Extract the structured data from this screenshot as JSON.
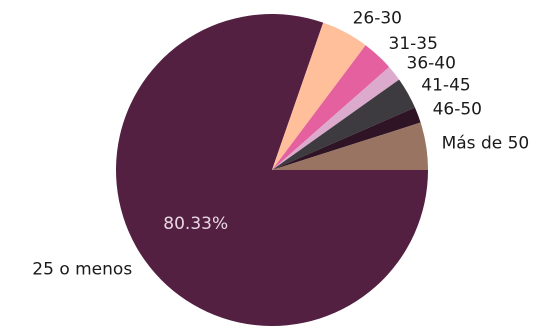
{
  "chart_data": {
    "type": "pie",
    "title": "",
    "categories": [
      "25 o menos",
      "26-30",
      "31-35",
      "36-40",
      "41-45",
      "46-50",
      "Más de 50"
    ],
    "values": [
      80.33,
      4.92,
      3.28,
      1.64,
      3.28,
      1.64,
      4.92
    ],
    "colors": [
      "#532042",
      "#ffbf9b",
      "#e4609e",
      "#dcaacc",
      "#3d3a40",
      "#2e1424",
      "#9a7462"
    ],
    "data_labels": [
      "80.33%",
      "",
      "",
      "",
      "",
      "",
      ""
    ],
    "pct_label_color": "#e8d8e4",
    "start_angle_deg": 0,
    "direction": "clockwise",
    "legend": "none"
  }
}
